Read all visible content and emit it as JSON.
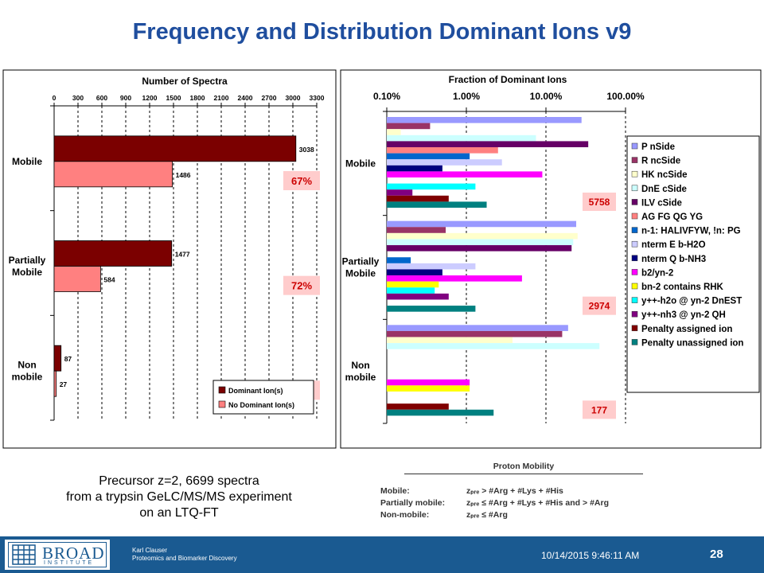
{
  "slide": {
    "title": "Frequency and Distribution Dominant Ions v9",
    "caption": [
      "Precursor z=2, 6699 spectra",
      "from a trypsin GeLC/MS/MS experiment",
      "on an LTQ-FT"
    ]
  },
  "proton_mobility": {
    "title": "Proton Mobility",
    "rows": [
      {
        "label": "Mobile:",
        "rule": "zₚᵣₑ > #Arg + #Lys + #His"
      },
      {
        "label": "Partially mobile:",
        "rule": "zₚᵣₑ ≤ #Arg + #Lys + #His and > #Arg"
      },
      {
        "label": "Non-mobile:",
        "rule": "zₚᵣₑ ≤ #Arg"
      }
    ]
  },
  "footer": {
    "logo_text": "BROAD",
    "logo_sub": "INSTITUTE",
    "author": "Karl Clauser",
    "department": "Proteomics and Biomarker Discovery",
    "datetime": "10/14/2015 9:46:11 AM",
    "page": "28"
  },
  "colors": {
    "title": "#1f4e9e",
    "footer_bg": "#1a5a91",
    "dominant": "#7b0000",
    "no_dominant": "#ff8080",
    "percent_box": "#ffcccc",
    "percent_text": "#cc0000"
  },
  "chart_data": [
    {
      "type": "bar",
      "orientation": "horizontal",
      "title": "Number of Spectra",
      "categories": [
        "Mobile",
        "Partially Mobile",
        "Non mobile"
      ],
      "x_ticks": [
        "0",
        "300",
        "600",
        "900",
        "1200",
        "1500",
        "1800",
        "2100",
        "2400",
        "2700",
        "3000",
        "3300"
      ],
      "xlim": [
        0,
        3300
      ],
      "grid": "vertical dashed",
      "legend_position": "bottom-right",
      "series": [
        {
          "name": "Dominant Ion(s)",
          "color": "#7b0000",
          "values": [
            3038,
            1477,
            87
          ],
          "labels": [
            "3038",
            "1477",
            "87"
          ]
        },
        {
          "name": "No Dominant Ion(s)",
          "color": "#ff8080",
          "values": [
            1486,
            584,
            27
          ],
          "labels": [
            "1486",
            "584",
            "27"
          ]
        }
      ],
      "percent_labels": [
        "67%",
        "72%",
        "76%"
      ]
    },
    {
      "type": "bar",
      "orientation": "horizontal",
      "title": "Fraction of Dominant Ions",
      "scale": "log",
      "categories": [
        "Mobile",
        "Partially Mobile",
        "Non mobile"
      ],
      "x_ticks": [
        "0.10%",
        "1.00%",
        "10.00%",
        "100.00%"
      ],
      "xlim": [
        0.1,
        100
      ],
      "grid": "vertical dashed",
      "legend_position": "right",
      "count_labels": [
        "5758",
        "2974",
        "177"
      ],
      "series": [
        {
          "name": "P nSide",
          "color": "#9999ff",
          "values": [
            28,
            24,
            19
          ]
        },
        {
          "name": "R ncSide",
          "color": "#993366",
          "values": [
            0.35,
            0.55,
            16
          ]
        },
        {
          "name": "HK ncSide",
          "color": "#ffffcc",
          "values": [
            0.15,
            25,
            3.8
          ]
        },
        {
          "name": "DnE cSide",
          "color": "#ccffff",
          "values": [
            7.5,
            22,
            47
          ]
        },
        {
          "name": "ILV cSide",
          "color": "#660066",
          "values": [
            34,
            21,
            null
          ]
        },
        {
          "name": "AG FG QG YG",
          "color": "#ff8080",
          "values": [
            2.5,
            null,
            null
          ]
        },
        {
          "name": "n-1: HALIVFYW, !n: PG",
          "color": "#0066cc",
          "values": [
            1.1,
            0.2,
            null
          ]
        },
        {
          "name": "nterm E b-H2O",
          "color": "#ccccff",
          "values": [
            2.8,
            1.3,
            null
          ]
        },
        {
          "name": "nterm Q b-NH3",
          "color": "#000080",
          "values": [
            0.5,
            0.5,
            null
          ]
        },
        {
          "name": "b2/yn-2",
          "color": "#ff00ff",
          "values": [
            9,
            5,
            1.1
          ]
        },
        {
          "name": "bn-2 contains RHK",
          "color": "#ffff00",
          "values": [
            null,
            0.45,
            1.1
          ]
        },
        {
          "name": "y++-h2o @ yn-2 DnEST",
          "color": "#00ffff",
          "values": [
            1.3,
            0.4,
            null
          ]
        },
        {
          "name": "y++-nh3 @ yn-2 QH",
          "color": "#800080",
          "values": [
            0.21,
            0.6,
            null
          ]
        },
        {
          "name": "Penalty assigned ion",
          "color": "#800000",
          "values": [
            0.6,
            null,
            0.6
          ]
        },
        {
          "name": "Penalty unassigned ion",
          "color": "#008080",
          "values": [
            1.8,
            1.3,
            2.2
          ]
        }
      ]
    }
  ]
}
